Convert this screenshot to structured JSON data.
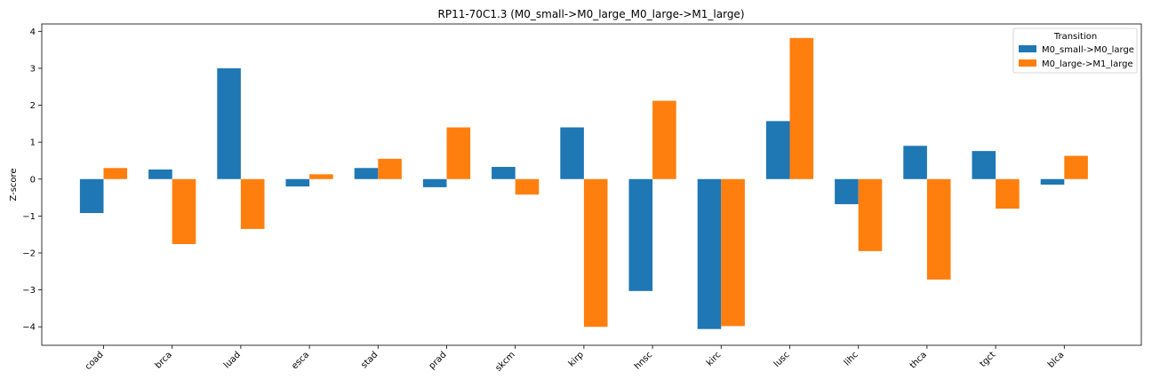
{
  "chart_data": {
    "type": "bar",
    "title": "RP11-70C1.3 (M0_small->M0_large_M0_large->M1_large)",
    "xlabel": "",
    "ylabel": "Z-score",
    "ylim": [
      -4.5,
      4.2
    ],
    "yticks": [
      -4,
      -3,
      -2,
      -1,
      0,
      1,
      2,
      3,
      4
    ],
    "ytick_labels": [
      "−4",
      "−3",
      "−2",
      "−1",
      "0",
      "1",
      "2",
      "3",
      "4"
    ],
    "grid": false,
    "legend_position": "top-right",
    "legend_title": "Transition",
    "categories": [
      "coad",
      "brca",
      "luad",
      "esca",
      "stad",
      "prad",
      "skcm",
      "kirp",
      "hnsc",
      "kirc",
      "lusc",
      "lihc",
      "thca",
      "tgct",
      "blca"
    ],
    "series": [
      {
        "name": "M0_small->M0_large",
        "color": "#1f77b4",
        "values": [
          -0.92,
          0.26,
          3.0,
          -0.2,
          0.3,
          -0.22,
          0.33,
          1.4,
          -3.03,
          -4.06,
          1.57,
          -0.68,
          0.9,
          0.76,
          -0.15
        ]
      },
      {
        "name": "M0_large->M1_large",
        "color": "#ff7f0e",
        "values": [
          0.3,
          -1.76,
          -1.35,
          0.13,
          0.55,
          1.4,
          -0.42,
          -4.0,
          2.12,
          -3.98,
          3.82,
          -1.95,
          -2.72,
          -0.8,
          0.63
        ]
      }
    ]
  }
}
